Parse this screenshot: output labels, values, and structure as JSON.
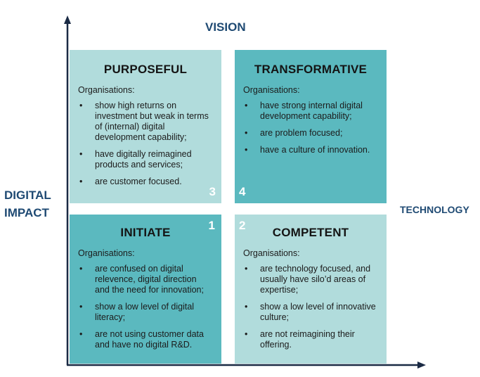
{
  "axes": {
    "top_label": "VISION",
    "left_label_line1": "DIGITAL",
    "left_label_line2": "IMPACT",
    "right_label": "TECHNOLOGY"
  },
  "quadrants": {
    "purposeful": {
      "title": "PURPOSEFUL",
      "subtitle": "Organisations:",
      "number": "3",
      "items": [
        "show high returns on investment but weak in terms of (internal) digital development capability;",
        "have digitally reimagined products and services;",
        "are customer focused."
      ]
    },
    "transformative": {
      "title": "TRANSFORMATIVE",
      "subtitle": "Organisations:",
      "number": "4",
      "items": [
        "have strong internal digital development capability;",
        "are problem focused;",
        "have a culture of innovation."
      ]
    },
    "initiate": {
      "title": "INITIATE",
      "subtitle": "Organisations:",
      "number": "1",
      "items": [
        "are confused on digital relevence, digital direction and the need for innovation;",
        "show a low level of digital literacy;",
        "are not using customer data and have no digital R&D."
      ]
    },
    "competent": {
      "title": "COMPETENT",
      "subtitle": "Organisations:",
      "number": "2",
      "items": [
        "are technology focused, and usually have silo’d areas of expertise;",
        "show a low level of innovative culture;",
        "are not reimagining their offering."
      ]
    }
  },
  "colors": {
    "dark_teal": "#5bb9bf",
    "light_teal": "#b1dcdc",
    "axis_label": "#1f4a73",
    "axis_line": "#1a2a44"
  }
}
